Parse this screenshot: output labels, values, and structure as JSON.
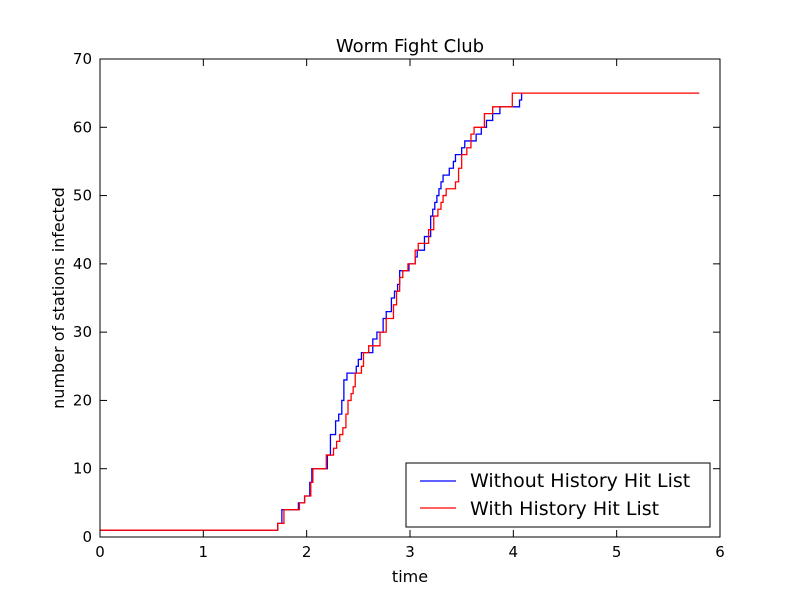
{
  "chart_data": {
    "type": "line",
    "title": "Worm Fight Club",
    "xlabel": "time",
    "ylabel": "number of stations infected",
    "xlim": [
      0,
      6
    ],
    "ylim": [
      0,
      70
    ],
    "xticks": [
      "0",
      "1",
      "2",
      "3",
      "4",
      "5",
      "6"
    ],
    "yticks": [
      "0",
      "10",
      "20",
      "30",
      "40",
      "50",
      "60",
      "70"
    ],
    "grid": false,
    "legend_position": "lower-right",
    "series": [
      {
        "name": "Without History Hit List",
        "color": "#0000ff",
        "step": true,
        "x": [
          0,
          1.72,
          1.76,
          1.82,
          1.92,
          1.98,
          2.03,
          2.05,
          2.07,
          2.2,
          2.23,
          2.25,
          2.28,
          2.31,
          2.34,
          2.36,
          2.39,
          2.43,
          2.48,
          2.5,
          2.53,
          2.57,
          2.64,
          2.68,
          2.71,
          2.74,
          2.77,
          2.8,
          2.82,
          2.85,
          2.88,
          2.9,
          2.93,
          2.99,
          3.05,
          3.07,
          3.1,
          3.14,
          3.2,
          3.22,
          3.24,
          3.26,
          3.28,
          3.3,
          3.32,
          3.34,
          3.38,
          3.42,
          3.44,
          3.47,
          3.5,
          3.53,
          3.57,
          3.64,
          3.69,
          3.74,
          3.8,
          3.87,
          4.06,
          4.08
        ],
        "y": [
          1,
          2,
          4,
          4,
          5,
          6,
          8,
          10,
          10,
          12,
          15,
          15,
          17,
          18,
          20,
          23,
          24,
          24,
          25,
          26,
          27,
          27,
          29,
          30,
          30,
          32,
          33,
          33,
          35,
          36,
          37,
          39,
          39,
          40,
          41,
          42,
          42,
          44,
          47,
          48,
          49,
          50,
          51,
          52,
          53,
          53,
          54,
          55,
          56,
          56,
          57,
          58,
          58,
          59,
          60,
          61,
          62,
          63,
          64,
          65
        ]
      },
      {
        "name": "With History Hit List",
        "color": "#ff0000",
        "step": true,
        "x": [
          0,
          1.72,
          1.78,
          1.84,
          1.93,
          1.98,
          2.04,
          2.06,
          2.19,
          2.22,
          2.26,
          2.29,
          2.32,
          2.35,
          2.38,
          2.4,
          2.43,
          2.45,
          2.47,
          2.5,
          2.53,
          2.55,
          2.6,
          2.66,
          2.71,
          2.74,
          2.77,
          2.8,
          2.84,
          2.87,
          2.9,
          2.93,
          2.98,
          3.05,
          3.08,
          3.12,
          3.18,
          3.23,
          3.27,
          3.3,
          3.32,
          3.35,
          3.44,
          3.47,
          3.5,
          3.52,
          3.55,
          3.59,
          3.62,
          3.66,
          3.72,
          3.8,
          3.95,
          3.99,
          5.8
        ],
        "y": [
          1,
          2,
          4,
          4,
          5,
          6,
          8,
          10,
          12,
          12,
          13,
          14,
          15,
          16,
          18,
          20,
          21,
          22,
          24,
          24,
          25,
          27,
          28,
          28,
          30,
          30,
          32,
          32,
          34,
          36,
          38,
          39,
          40,
          42,
          43,
          43,
          45,
          47,
          48,
          49,
          50,
          51,
          52,
          54,
          56,
          56,
          57,
          59,
          60,
          60,
          62,
          63,
          63,
          65,
          65
        ]
      }
    ]
  }
}
